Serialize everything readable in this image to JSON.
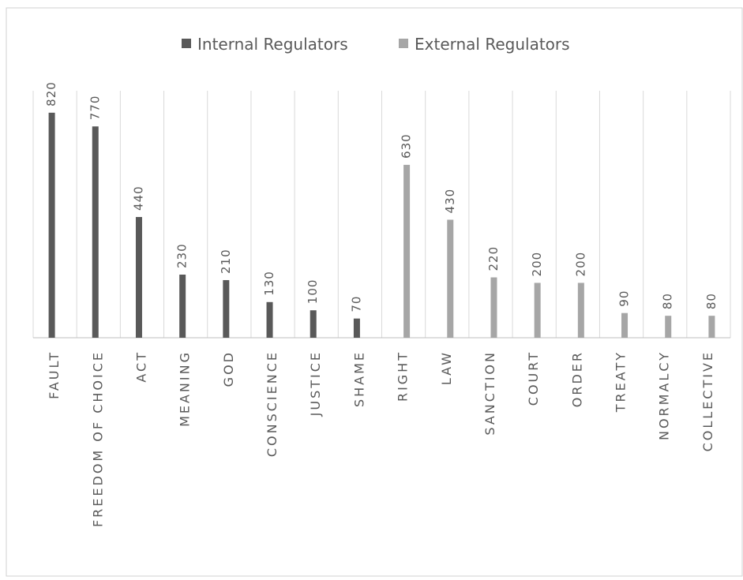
{
  "chart_data": {
    "type": "bar",
    "categories": [
      "FAULT",
      "FREEDOM OF CHOICE",
      "ACT",
      "MEANING",
      "GOD",
      "CONSCIENCE",
      "JUSTICE",
      "SHAME",
      "RIGHT",
      "LAW",
      "SANCTION",
      "COURT",
      "ORDER",
      "TREATY",
      "NORMALCY",
      "COLLECTIVE"
    ],
    "series": [
      {
        "name": "Internal Regulators",
        "color": "#595959",
        "values": [
          820,
          770,
          440,
          230,
          210,
          130,
          100,
          70,
          null,
          null,
          null,
          null,
          null,
          null,
          null,
          null
        ]
      },
      {
        "name": "External Regulators",
        "color": "#a6a6a6",
        "values": [
          null,
          null,
          null,
          null,
          null,
          null,
          null,
          null,
          630,
          430,
          220,
          200,
          200,
          90,
          80,
          80
        ]
      }
    ],
    "ylim": [
      0,
      900
    ],
    "legend": "top"
  }
}
